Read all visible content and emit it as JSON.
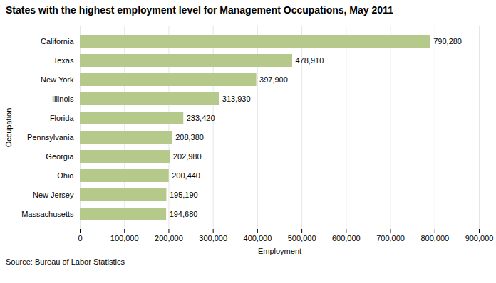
{
  "chart_data": {
    "type": "bar",
    "orientation": "horizontal",
    "title": "States with the highest employment level for Management Occupations, May 2011",
    "categories": [
      "Massachusetts",
      "New Jersey",
      "Ohio",
      "Georgia",
      "Pennsylvania",
      "Florida",
      "Illinois",
      "New York",
      "Texas",
      "California"
    ],
    "values": [
      194680,
      195190,
      200440,
      202980,
      208380,
      233420,
      313930,
      397900,
      478910,
      790280
    ],
    "value_labels": [
      "194,680",
      "195,190",
      "200,440",
      "202,980",
      "208,380",
      "233,420",
      "313,930",
      "397,900",
      "478,910",
      "790,280"
    ],
    "data_labels": true,
    "color": "#b5c98a",
    "xlabel": "Employment",
    "ylabel": "Occupation",
    "xlim": [
      0,
      900000
    ],
    "xticks": [
      0,
      {
        "value": 100000,
        "label": "100,000"
      },
      {
        "value": 200000,
        "label": "200,000"
      },
      {
        "value": 300000,
        "label": "300,000"
      },
      {
        "value": 400000,
        "label": "400,000"
      },
      {
        "value": 500000,
        "label": "500,000"
      },
      {
        "value": 600000,
        "label": "600,000"
      },
      {
        "value": 700000,
        "label": "700,000"
      },
      {
        "value": 800000,
        "label": "800,000"
      },
      {
        "value": 900000,
        "label": "900,000"
      }
    ],
    "grid": true,
    "source": "Source: Bureau of Labor Statistics"
  }
}
